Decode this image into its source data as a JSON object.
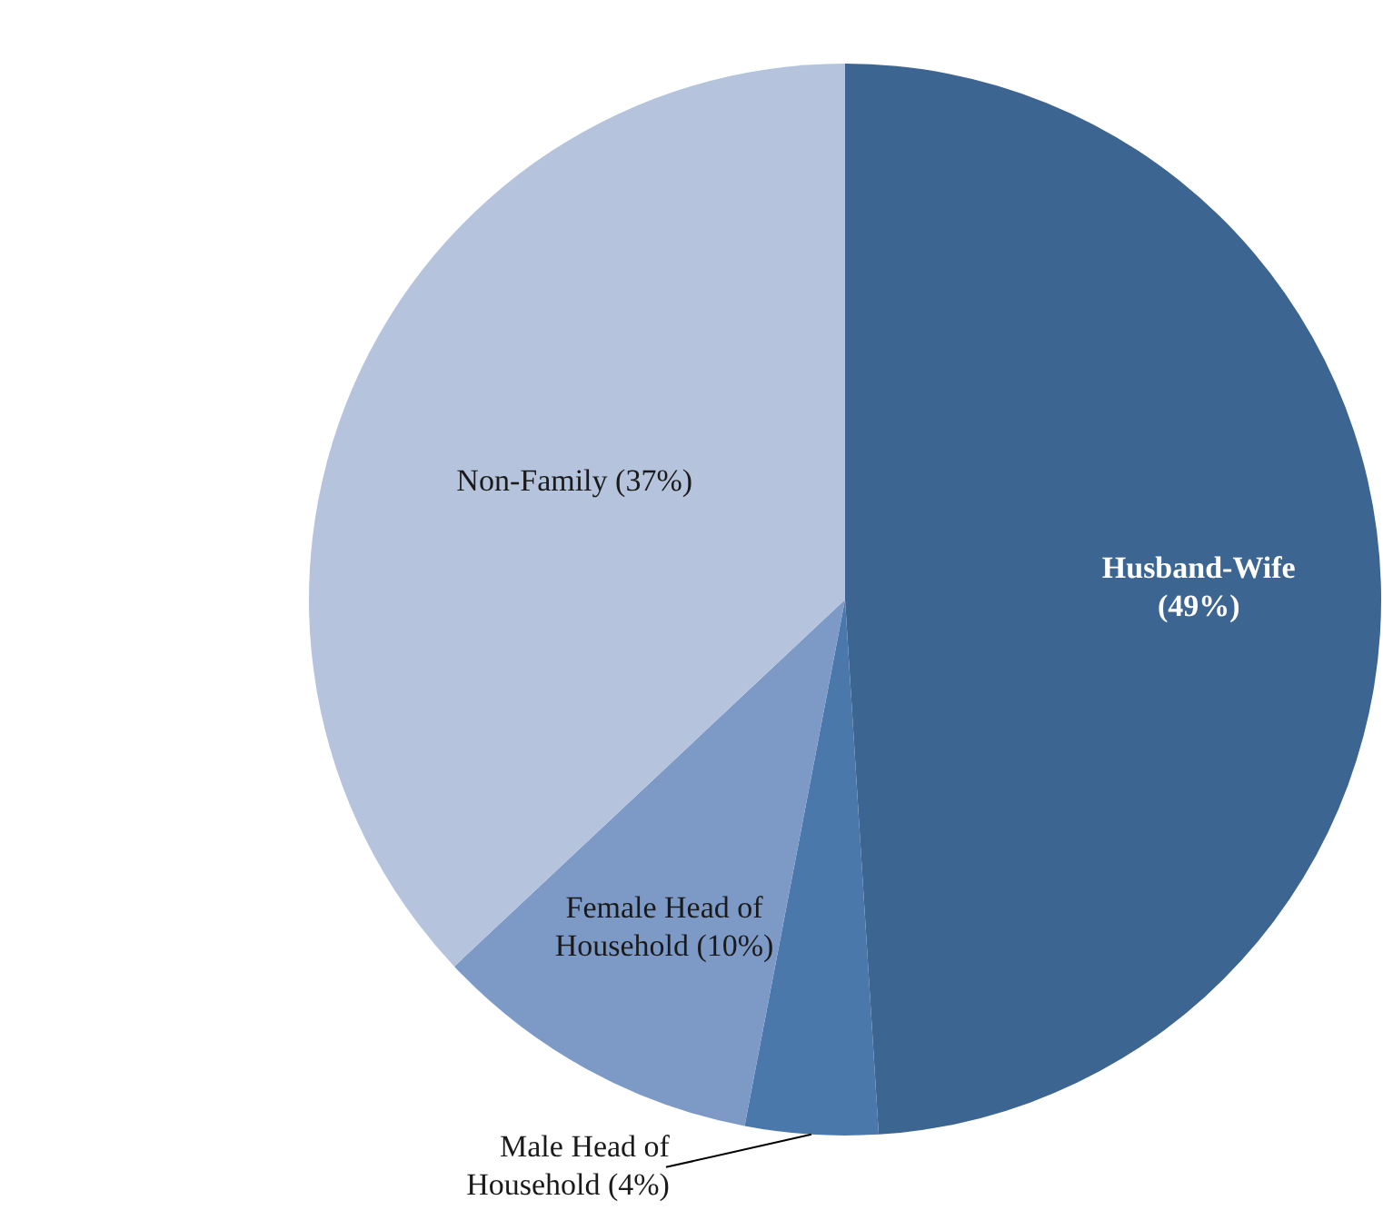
{
  "chart_data": {
    "type": "pie",
    "categories": [
      "Husband-Wife",
      "Male Head of Household",
      "Female Head of Household",
      "Non-Family"
    ],
    "values": [
      49,
      4,
      10,
      37
    ],
    "colors": [
      "#3d6591",
      "#4a78ab",
      "#7d9ac6",
      "#b5c3dc"
    ],
    "value_labels": [
      "(49%)",
      "(4%)",
      "(10%)",
      "(37%)"
    ],
    "legend": false
  }
}
